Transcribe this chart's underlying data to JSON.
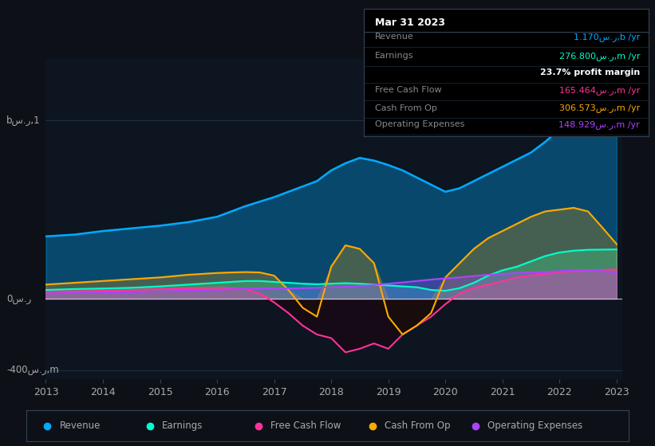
{
  "bg_color": "#0d1117",
  "plot_bg_color": "#0d1520",
  "text_color": "#aaaaaa",
  "revenue_color": "#00aaff",
  "earnings_color": "#00ffcc",
  "free_cash_flow_color": "#ff3399",
  "cash_from_op_color": "#ffaa00",
  "operating_expenses_color": "#aa44ff",
  "tooltip_title": "Mar 31 2023",
  "tooltip_revenue_label": "Revenue",
  "tooltip_revenue_value": "1.170س.ر,b /yr",
  "tooltip_earnings_label": "Earnings",
  "tooltip_earnings_value": "276.800س.ر,m /yr",
  "tooltip_margin": "23.7% profit margin",
  "tooltip_fcf_label": "Free Cash Flow",
  "tooltip_fcf_value": "165.464س.ر,m /yr",
  "tooltip_cfop_label": "Cash From Op",
  "tooltip_cfop_value": "306.573س.ر,m /yr",
  "tooltip_opex_label": "Operating Expenses",
  "tooltip_opex_value": "148.929س.ر,m /yr",
  "legend_labels": [
    "Revenue",
    "Earnings",
    "Free Cash Flow",
    "Cash From Op",
    "Operating Expenses"
  ],
  "legend_colors": [
    "#00aaff",
    "#00ffcc",
    "#ff3399",
    "#ffaa00",
    "#aa44ff"
  ]
}
